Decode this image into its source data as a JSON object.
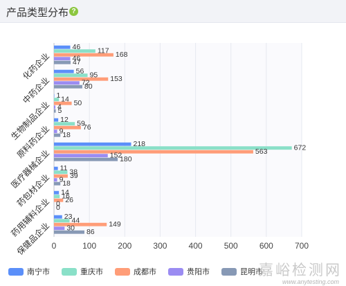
{
  "header": {
    "title": "产品类型分布",
    "help_icon": "help-circle-icon"
  },
  "watermark": {
    "text": "嘉峪检测网",
    "url": "www.anytesting.com"
  },
  "chart_data": {
    "type": "bar",
    "orientation": "horizontal",
    "categories": [
      "化药企业",
      "中药企业",
      "生物制品企业",
      "原料药企业",
      "医疗器械企业",
      "药包材企业",
      "药用辅料企业",
      "保健品企业"
    ],
    "series": [
      {
        "name": "南宁市",
        "color": "#5b8ff9",
        "values": [
          46,
          56,
          1,
          12,
          218,
          11,
          14,
          23
        ]
      },
      {
        "name": "重庆市",
        "color": "#8ae0c8",
        "values": [
          117,
          95,
          14,
          59,
          672,
          38,
          16,
          44
        ]
      },
      {
        "name": "成都市",
        "color": "#ff9d78",
        "values": [
          168,
          153,
          50,
          76,
          563,
          39,
          26,
          149
        ]
      },
      {
        "name": "贵阳市",
        "color": "#9b8cf2",
        "values": [
          46,
          72,
          4,
          9,
          152,
          9,
          0,
          30
        ]
      },
      {
        "name": "昆明市",
        "color": "#8799b5",
        "values": [
          47,
          80,
          5,
          18,
          180,
          18,
          0,
          86
        ]
      }
    ],
    "xlim": [
      0,
      700
    ],
    "xticks": [
      0,
      100,
      200,
      300,
      400,
      500,
      600,
      700
    ],
    "grid": true,
    "legend_position": "bottom"
  }
}
